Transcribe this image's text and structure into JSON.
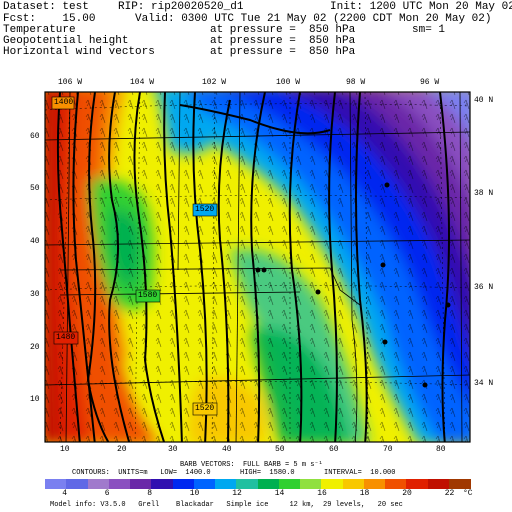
{
  "header": {
    "dataset": "Dataset: test",
    "rip": "RIP: rip20020520_d1",
    "init": "Init: 1200 UTC Mon 20 May 02",
    "fcst": "Fcst:    15.00",
    "valid": "Valid: 0300 UTC Tue 21 May 02 (2200 CDT Mon 20 May 02)",
    "fields": [
      {
        "name": "Temperature",
        "level": "at pressure =  850 hPa",
        "extra": "sm= 1"
      },
      {
        "name": "Geopotential height",
        "level": "at pressure =  850 hPa",
        "extra": ""
      },
      {
        "name": "Horizontal wind vectors",
        "level": "at pressure =  850 hPa",
        "extra": ""
      }
    ]
  },
  "map": {
    "lon_labels": [
      "106 W",
      "104 W",
      "102 W",
      "100 W",
      "98 W",
      "96 W"
    ],
    "lat_labels": [
      "40 N",
      "38 N",
      "36 N",
      "34 N"
    ],
    "x_ticks": [
      "10",
      "20",
      "30",
      "40",
      "50",
      "60",
      "70",
      "80"
    ],
    "y_ticks": [
      "60",
      "50",
      "40",
      "30",
      "20",
      "10"
    ],
    "contour_labels": [
      "1400",
      "1520",
      "1520",
      "1580",
      "1480"
    ]
  },
  "footer": {
    "barb_vectors": "BARB VECTORS:  FULL BARB = 5 m s⁻¹",
    "contours": "CONTOURS:  UNITS=m   LOW=  1400.0       HIGH=  1580.0       INTERVAL=  10.000",
    "model_info": "Model info: V3.5.0   Grell    Blackadar   Simple ice     12 km,  29 levels,   20 sec"
  },
  "colorbar": {
    "labels": [
      "4",
      "6",
      "8",
      "10",
      "12",
      "14",
      "16",
      "18",
      "20",
      "22"
    ],
    "unit": "°C",
    "colors": [
      "#7a80f0",
      "#6068e6",
      "#a07acc",
      "#8a50c0",
      "#6a28a8",
      "#3010b0",
      "#0028f0",
      "#0064ff",
      "#00a8f0",
      "#20c0a0",
      "#00b050",
      "#30d030",
      "#90e040",
      "#f0f000",
      "#f8c800",
      "#f89000",
      "#f05000",
      "#e02000",
      "#c01000",
      "#a03800"
    ]
  }
}
